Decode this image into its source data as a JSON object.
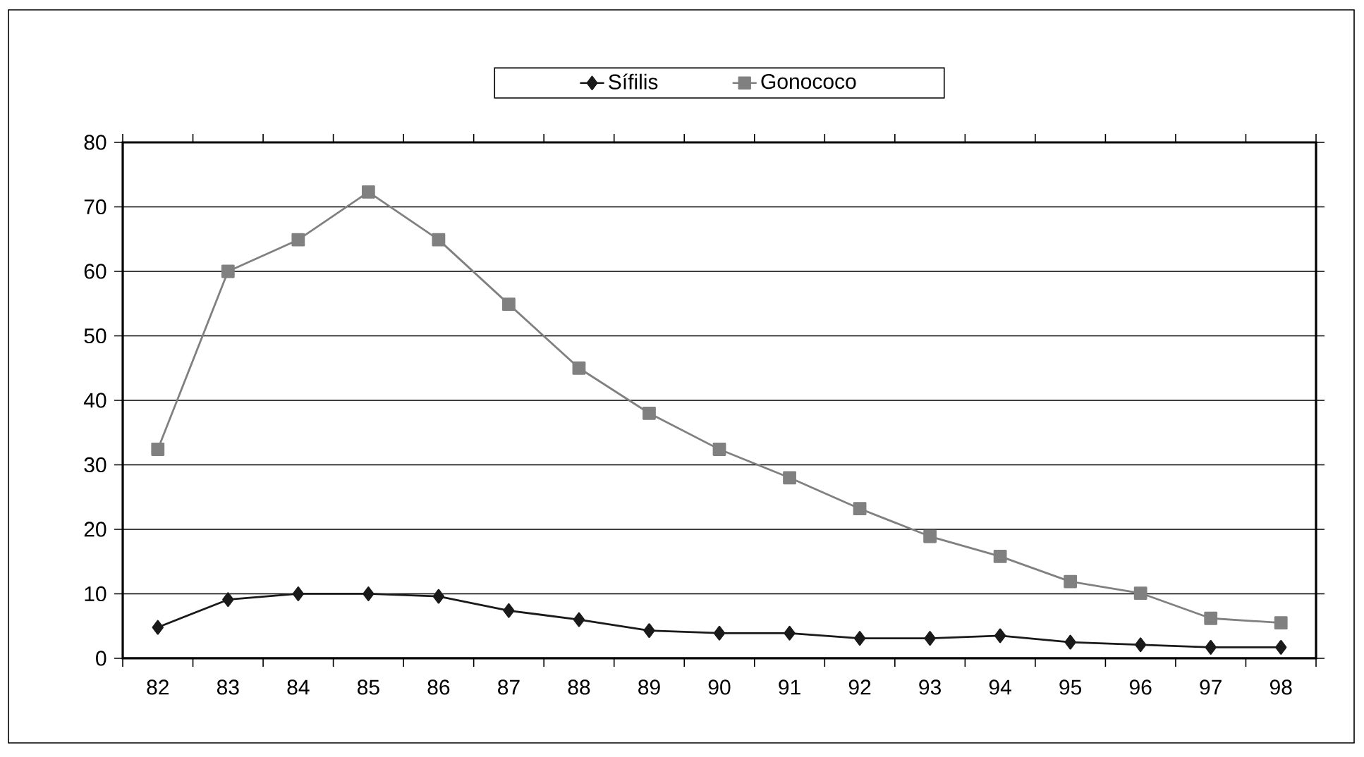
{
  "chart_data": {
    "type": "line",
    "categories": [
      "82",
      "83",
      "84",
      "85",
      "86",
      "87",
      "88",
      "89",
      "90",
      "91",
      "92",
      "93",
      "94",
      "95",
      "96",
      "97",
      "98"
    ],
    "series": [
      {
        "name": "Sífilis",
        "color": "#1a1a1a",
        "marker": "diamond",
        "values": [
          4.8,
          9.1,
          10,
          10,
          9.6,
          7.4,
          6,
          4.3,
          3.9,
          3.9,
          3.1,
          3.1,
          3.5,
          2.5,
          2.1,
          1.7,
          1.7
        ]
      },
      {
        "name": "Gonococo",
        "color": "#808080",
        "marker": "square",
        "values": [
          32.4,
          60,
          64.9,
          72.3,
          64.9,
          54.9,
          45,
          38,
          32.4,
          28,
          23.2,
          18.9,
          15.8,
          11.9,
          10.1,
          6.2,
          5.5
        ]
      }
    ],
    "ylim": [
      0,
      80
    ],
    "yticks": [
      0,
      10,
      20,
      30,
      40,
      50,
      60,
      70,
      80
    ],
    "grid": "y",
    "legend": "top",
    "line_style": "solid"
  }
}
